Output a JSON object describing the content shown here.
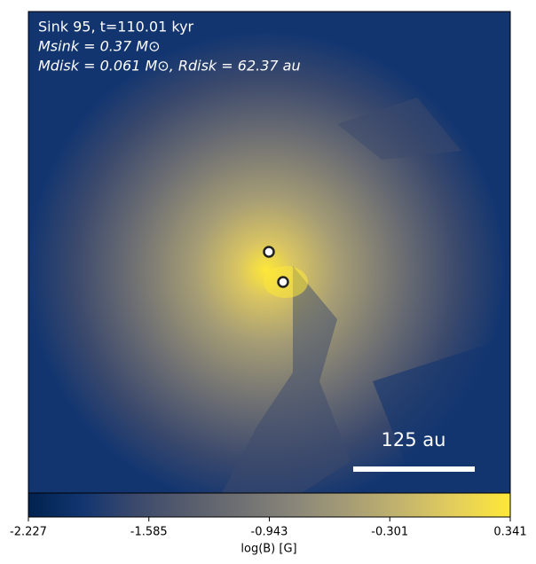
{
  "chart_data": {
    "type": "image",
    "annotations": [
      "Sink 95, t=110.01 kyr",
      "Msink = 0.37 M⊙",
      "Mdisk = 0.061 M⊙, Rdisk = 62.37 au"
    ],
    "scale_bar_label": "125 au",
    "colorbar": {
      "label": "log(B) [G]",
      "lim": [
        -2.227,
        0.341
      ],
      "ticks": [
        -2.227,
        -1.585,
        -0.943,
        -0.301,
        0.341
      ],
      "colormap": [
        "#00224e",
        "#123570",
        "#3b496c",
        "#575d6d",
        "#707173",
        "#8a8779",
        "#a69d75",
        "#c4b56c",
        "#e4cf5b",
        "#fee838"
      ]
    }
  }
}
